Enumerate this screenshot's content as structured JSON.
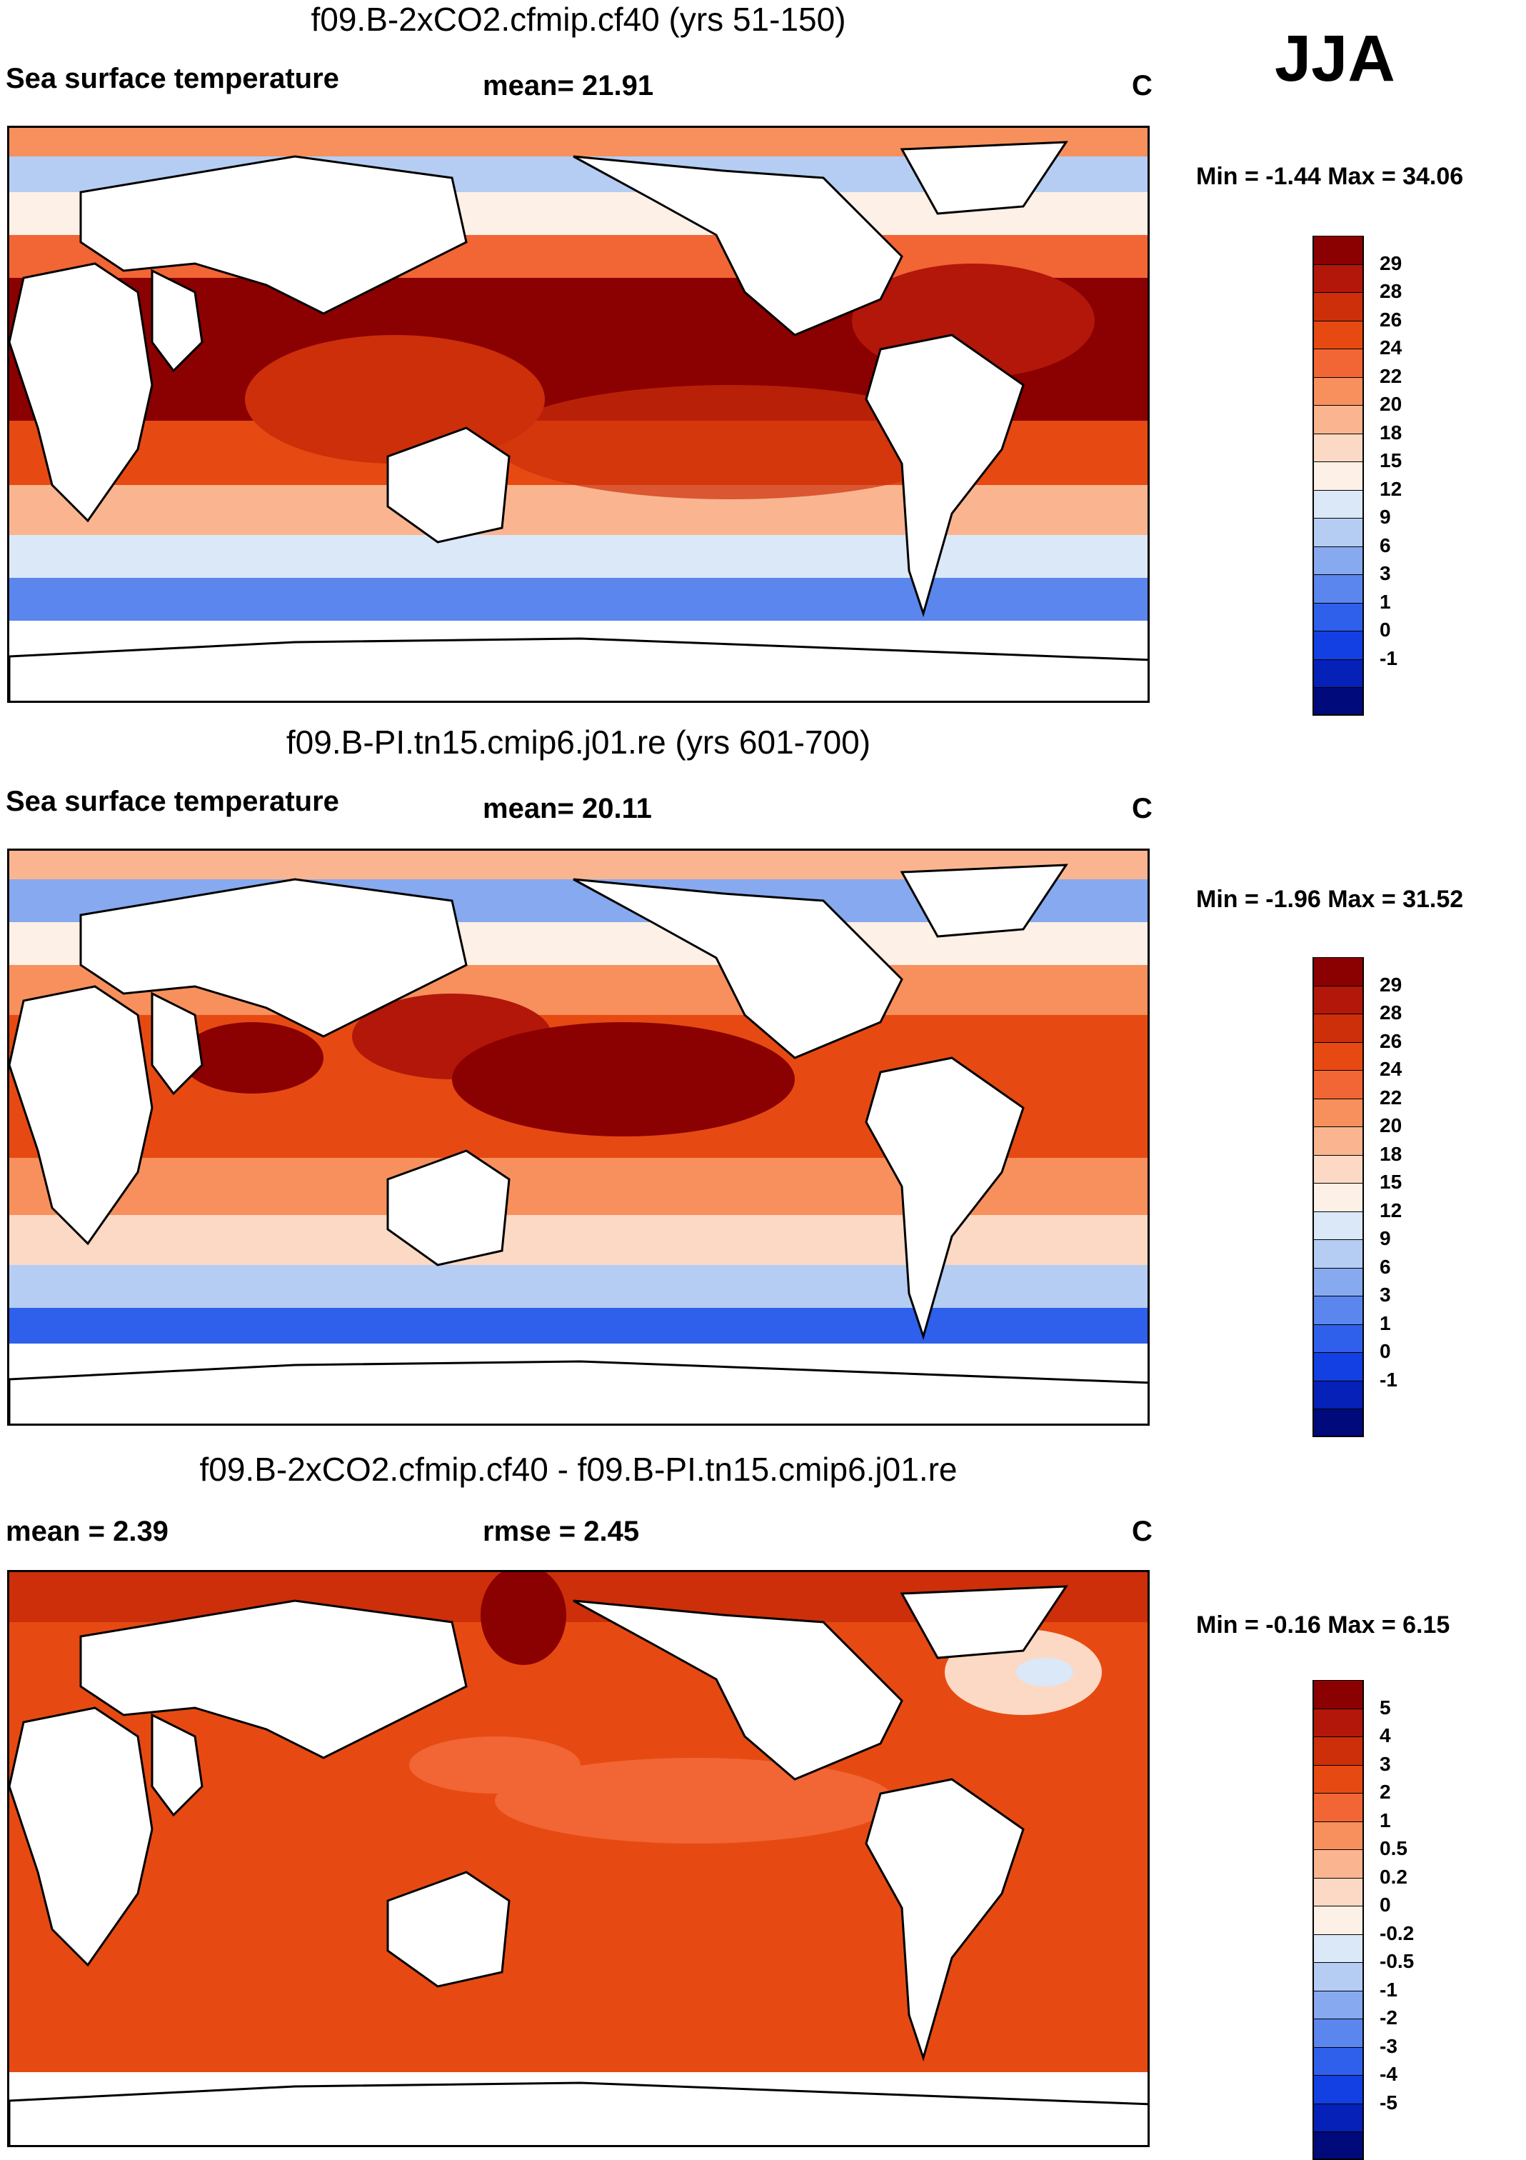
{
  "season": "JJA",
  "panels": [
    {
      "title": "f09.B-2xCO2.cfmip.cf40 (yrs 51-150)",
      "left_label": "Sea surface temperature",
      "mid_label": "mean=  21.91",
      "units": "C",
      "minmax": "Min =  -1.44 Max =  34.06",
      "colorbar": {
        "labels": [
          "29",
          "28",
          "26",
          "24",
          "22",
          "20",
          "18",
          "15",
          "12",
          "9",
          "6",
          "3",
          "1",
          "0",
          "-1"
        ],
        "colors": [
          "#8b0000",
          "#b2170a",
          "#cc2f0a",
          "#e64a12",
          "#f26534",
          "#f7905c",
          "#fab590",
          "#fcd9c4",
          "#fdf0e6",
          "#dbe8f7",
          "#b5cdf2",
          "#86a9ef",
          "#5a86ee",
          "#2f60ec",
          "#1240e3",
          "#0521b8",
          "#000a7a"
        ]
      }
    },
    {
      "title": "f09.B-PI.tn15.cmip6.j01.re (yrs 601-700)",
      "left_label": "Sea surface temperature",
      "mid_label": "mean=  20.11",
      "units": "C",
      "minmax": "Min =  -1.96 Max =  31.52",
      "colorbar": {
        "labels": [
          "29",
          "28",
          "26",
          "24",
          "22",
          "20",
          "18",
          "15",
          "12",
          "9",
          "6",
          "3",
          "1",
          "0",
          "-1"
        ],
        "colors": [
          "#8b0000",
          "#b2170a",
          "#cc2f0a",
          "#e64a12",
          "#f26534",
          "#f7905c",
          "#fab590",
          "#fcd9c4",
          "#fdf0e6",
          "#dbe8f7",
          "#b5cdf2",
          "#86a9ef",
          "#5a86ee",
          "#2f60ec",
          "#1240e3",
          "#0521b8",
          "#000a7a"
        ]
      }
    },
    {
      "title": "f09.B-2xCO2.cfmip.cf40 - f09.B-PI.tn15.cmip6.j01.re",
      "left_label": "mean =    2.39",
      "mid_label": "rmse =    2.45",
      "units": "C",
      "minmax": "Min =  -0.16 Max =    6.15",
      "colorbar": {
        "labels": [
          "5",
          "4",
          "3",
          "2",
          "1",
          "0.5",
          "0.2",
          "0",
          "-0.2",
          "-0.5",
          "-1",
          "-2",
          "-3",
          "-4",
          "-5"
        ],
        "colors": [
          "#8b0000",
          "#b2170a",
          "#cc2f0a",
          "#e64a12",
          "#f26534",
          "#f7905c",
          "#fab590",
          "#fcd9c4",
          "#fdf0e6",
          "#dbe8f7",
          "#b5cdf2",
          "#86a9ef",
          "#5a86ee",
          "#2f60ec",
          "#1240e3",
          "#0521b8",
          "#000a7a"
        ]
      }
    }
  ]
}
